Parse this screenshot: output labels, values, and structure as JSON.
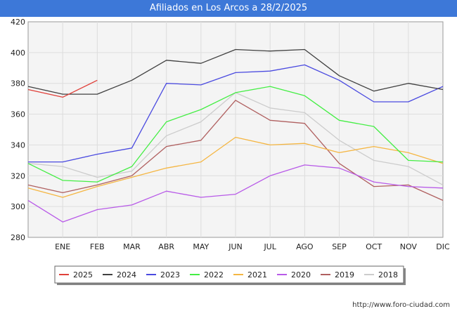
{
  "header": {
    "title": "Afiliados en Los Arcos a 28/2/2025"
  },
  "footer": {
    "source": "http://www.foro-ciudad.com"
  },
  "chart_data": {
    "type": "line",
    "title": "Afiliados en Los Arcos a 28/2/2025",
    "categories": [
      "",
      "ENE",
      "FEB",
      "MAR",
      "ABR",
      "MAY",
      "JUN",
      "JUL",
      "AGO",
      "SEP",
      "OCT",
      "NOV",
      "DIC"
    ],
    "ylim": [
      280,
      420
    ],
    "yticks": [
      280,
      300,
      320,
      340,
      360,
      380,
      400,
      420
    ],
    "grid": true,
    "legend_position": "bottom",
    "series": [
      {
        "name": "2025",
        "color": "#e0403a",
        "values": [
          376,
          371,
          382,
          null,
          null,
          null,
          null,
          null,
          null,
          null,
          null,
          null,
          null
        ]
      },
      {
        "name": "2024",
        "color": "#404040",
        "values": [
          378,
          373,
          373,
          382,
          395,
          393,
          402,
          401,
          402,
          385,
          375,
          380,
          376
        ]
      },
      {
        "name": "2023",
        "color": "#4a4ae0",
        "values": [
          329,
          329,
          334,
          338,
          380,
          379,
          387,
          388,
          392,
          382,
          368,
          368,
          378
        ]
      },
      {
        "name": "2022",
        "color": "#44ee44",
        "values": [
          328,
          317,
          316,
          326,
          355,
          363,
          374,
          378,
          372,
          356,
          352,
          330,
          329
        ]
      },
      {
        "name": "2021",
        "color": "#f5b642",
        "values": [
          312,
          306,
          313,
          319,
          325,
          329,
          345,
          340,
          341,
          335,
          339,
          335,
          328
        ]
      },
      {
        "name": "2020",
        "color": "#b85ae8",
        "values": [
          304,
          290,
          298,
          301,
          310,
          306,
          308,
          320,
          327,
          325,
          316,
          313,
          312
        ]
      },
      {
        "name": "2019",
        "color": "#b06060",
        "values": [
          314,
          309,
          314,
          320,
          339,
          343,
          369,
          356,
          354,
          328,
          313,
          314,
          304
        ]
      },
      {
        "name": "2018",
        "color": "#cccccc",
        "values": [
          328,
          326,
          319,
          323,
          346,
          355,
          374,
          364,
          361,
          343,
          330,
          326,
          314
        ]
      }
    ]
  }
}
